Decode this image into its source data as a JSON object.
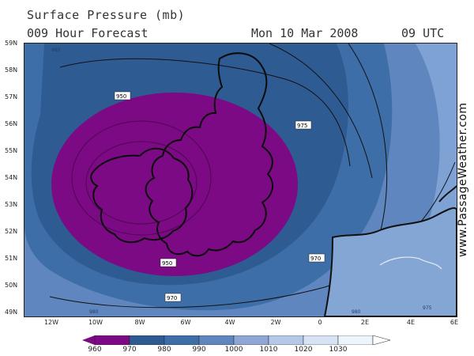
{
  "header": {
    "title": "Surface Pressure (mb)",
    "forecast": "009 Hour Forecast",
    "date": "Mon 10 Mar 2008",
    "time": "09 UTC"
  },
  "watermark": "www.PassageWeather.com",
  "axes": {
    "lat": [
      "59N",
      "58N",
      "57N",
      "56N",
      "55N",
      "54N",
      "53N",
      "52N",
      "51N",
      "50N",
      "49N"
    ],
    "lon": [
      "12W",
      "10W",
      "8W",
      "6W",
      "4W",
      "2W",
      "0",
      "2E",
      "4E",
      "6E"
    ]
  },
  "contours": {
    "labels": [
      "950",
      "975",
      "970",
      "980",
      "980",
      "970",
      "980",
      "975"
    ]
  },
  "legend": {
    "labels": [
      "960",
      "970",
      "980",
      "990",
      "1000",
      "1010",
      "1020",
      "1030"
    ],
    "colors": [
      "#7b0a84",
      "#2f5b93",
      "#3e6ea7",
      "#5f86be",
      "#8fa7d4",
      "#b6c8e8",
      "#d6e3f5",
      "#eef4fb"
    ]
  },
  "colors": {
    "sea_dark": "#2d5a91",
    "sea_mid": "#4675b3",
    "sea_light": "#6f95cc",
    "low_core": "#7b0a84"
  }
}
